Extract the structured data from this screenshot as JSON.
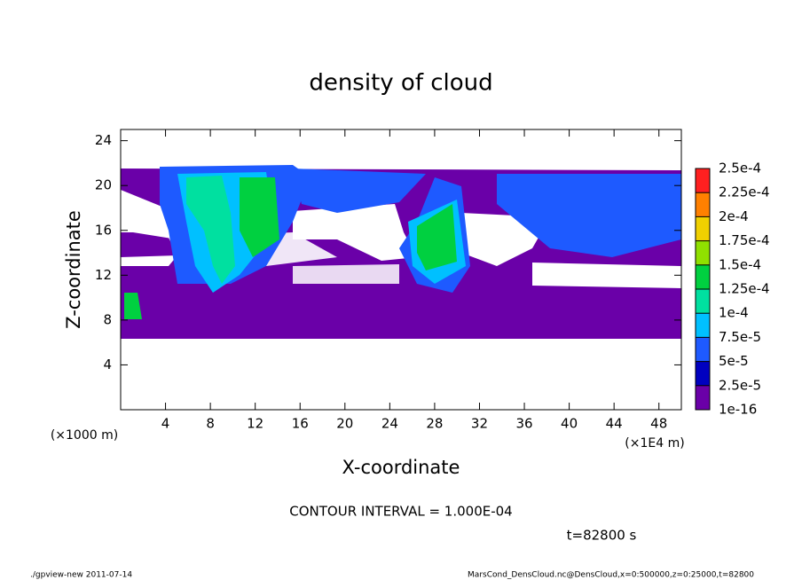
{
  "chart_data": {
    "type": "contour",
    "title": "density of cloud",
    "x_label": "X-coordinate",
    "y_label": "Z-coordinate",
    "y_unit": "(×1000 m)",
    "x_unit": "(×1E4 m)",
    "xlim": [
      0,
      50
    ],
    "ylim": [
      0,
      25
    ],
    "xticks": [
      4,
      8,
      12,
      16,
      20,
      24,
      28,
      32,
      36,
      40,
      44,
      48
    ],
    "yticks": [
      4,
      8,
      12,
      16,
      20,
      24
    ],
    "colorbar": {
      "levels": [
        {
          "value": 1e-16,
          "label": "1e-16"
        },
        {
          "value": 2.5e-05,
          "label": "2.5e-5"
        },
        {
          "value": 5e-05,
          "label": "5e-5"
        },
        {
          "value": 7.5e-05,
          "label": "7.5e-5"
        },
        {
          "value": 0.0001,
          "label": "1e-4"
        },
        {
          "value": 0.000125,
          "label": "1.25e-4"
        },
        {
          "value": 0.00015,
          "label": "1.5e-4"
        },
        {
          "value": 0.000175,
          "label": "1.75e-4"
        },
        {
          "value": 0.0002,
          "label": "2e-4"
        },
        {
          "value": 0.000225,
          "label": "2.25e-4"
        },
        {
          "value": 0.00025,
          "label": "2.5e-4"
        }
      ],
      "colors": [
        "#6a00a8",
        "#0000c0",
        "#1e5aff",
        "#00c0ff",
        "#00e0a0",
        "#00d040",
        "#90e000",
        "#f0d000",
        "#ff8000",
        "#ff2020",
        "#ff9c9c"
      ]
    },
    "contour_interval": "CONTOUR INTERVAL = 1.000E-04",
    "time_label": "t=82800 s",
    "footer_left": "./gpview-new  2011-07-14",
    "footer_right": "MarsCond_DensCloud.nc@DensCloud,x=0:500000,z=0:25000,t=82800"
  }
}
